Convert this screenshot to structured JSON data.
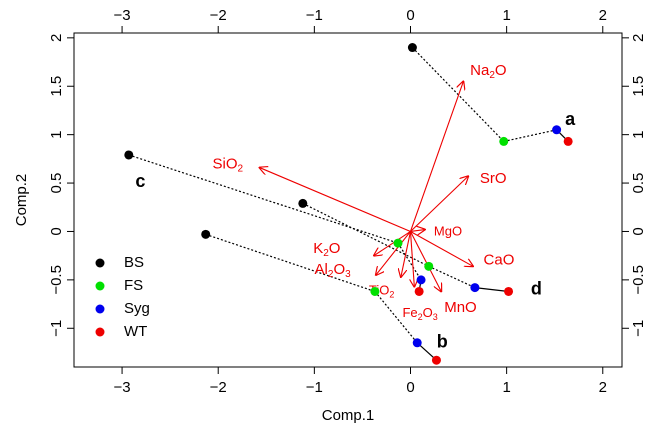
{
  "chart_data": {
    "type": "scatter",
    "title": "",
    "xlabel": "Comp.1",
    "ylabel": "Comp.2",
    "xlim": [
      -3.5,
      2.2
    ],
    "ylim": [
      -1.4,
      2.05
    ],
    "x_ticks": [
      -3,
      -2,
      -1,
      0,
      1,
      2
    ],
    "y_ticks": [
      -1.0,
      -0.5,
      0.0,
      0.5,
      1.0,
      1.5,
      2.0
    ],
    "secondary_x_ticks": [
      -3,
      -2,
      -1,
      0,
      1,
      2
    ],
    "secondary_y_ticks": [
      -1.0,
      -0.5,
      0.0,
      0.5,
      1.0,
      1.5,
      2.0
    ],
    "grid": false,
    "legend_position": "bottom-left",
    "series": [
      {
        "name": "BS",
        "color": "#000000",
        "points": [
          {
            "label": "a",
            "x": 0.02,
            "y": 1.9
          },
          {
            "label": "c",
            "x": -2.93,
            "y": 0.79
          },
          {
            "label": "d",
            "x": -1.12,
            "y": 0.29
          },
          {
            "label": "b",
            "x": -2.13,
            "y": -0.03
          }
        ]
      },
      {
        "name": "FS",
        "color": "#00e000",
        "points": [
          {
            "label": "a",
            "x": 0.97,
            "y": 0.93
          },
          {
            "label": "c",
            "x": -0.13,
            "y": -0.12
          },
          {
            "label": "d",
            "x": 0.19,
            "y": -0.36
          },
          {
            "label": "b",
            "x": -0.37,
            "y": -0.62
          }
        ]
      },
      {
        "name": "Syg",
        "color": "#0000ee",
        "points": [
          {
            "label": "a",
            "x": 1.52,
            "y": 1.05
          },
          {
            "label": "c",
            "x": 0.11,
            "y": -0.5
          },
          {
            "label": "d",
            "x": 0.67,
            "y": -0.58
          },
          {
            "label": "b",
            "x": 0.07,
            "y": -1.15
          }
        ]
      },
      {
        "name": "WT",
        "color": "#ee0000",
        "points": [
          {
            "label": "a",
            "x": 1.64,
            "y": 0.93
          },
          {
            "label": "c",
            "x": 0.09,
            "y": -0.62
          },
          {
            "label": "d",
            "x": 1.02,
            "y": -0.62
          },
          {
            "label": "b",
            "x": 0.27,
            "y": -1.33
          }
        ]
      }
    ],
    "connections": [
      {
        "from": "BS",
        "to": "FS",
        "style": "dotted"
      },
      {
        "from": "FS",
        "to": "Syg",
        "style": "dotted"
      },
      {
        "from": "Syg",
        "to": "WT",
        "style": "solid"
      }
    ],
    "group_labels": [
      {
        "text": "a",
        "x": 1.66,
        "y": 1.15
      },
      {
        "text": "b",
        "x": 0.33,
        "y": -1.15
      },
      {
        "text": "c",
        "x": -2.81,
        "y": 0.51
      },
      {
        "text": "d",
        "x": 1.31,
        "y": -0.6
      }
    ],
    "loading_vectors": {
      "color": "#ee0000",
      "origin": {
        "x": 0,
        "y": 0
      },
      "items": [
        {
          "name": "Na2O",
          "base": "Na",
          "sub": "2",
          "suffix": "O",
          "x": 0.55,
          "y": 1.55,
          "label_x": 0.81,
          "label_y": 1.66,
          "size": "large"
        },
        {
          "name": "SiO2",
          "base": "SiO",
          "sub": "2",
          "suffix": "",
          "x": -1.57,
          "y": 0.66,
          "label_x": -1.9,
          "label_y": 0.69,
          "size": "large"
        },
        {
          "name": "SrO",
          "base": "SrO",
          "sub": "",
          "suffix": "",
          "x": 0.6,
          "y": 0.57,
          "label_x": 0.86,
          "label_y": 0.54,
          "size": "large"
        },
        {
          "name": "MgO",
          "base": "MgO",
          "sub": "",
          "suffix": "",
          "x": 0.15,
          "y": 0.02,
          "label_x": 0.39,
          "label_y": -0.01,
          "size": "small"
        },
        {
          "name": "CaO",
          "base": "CaO",
          "sub": "",
          "suffix": "",
          "x": 0.65,
          "y": -0.36,
          "label_x": 0.92,
          "label_y": -0.3,
          "size": "large"
        },
        {
          "name": "K2O",
          "base": "K",
          "sub": "2",
          "suffix": "O",
          "x": -0.38,
          "y": -0.25,
          "label_x": -0.87,
          "label_y": -0.18,
          "size": "large"
        },
        {
          "name": "Al2O3",
          "base": "Al",
          "sub": "2",
          "suffix": "O",
          "sub2": "3",
          "x": -0.36,
          "y": -0.45,
          "label_x": -0.81,
          "label_y": -0.4,
          "size": "large"
        },
        {
          "name": "TiO2",
          "base": "TiO",
          "sub": "2",
          "suffix": "",
          "x": -0.1,
          "y": -0.47,
          "label_x": -0.3,
          "label_y": -0.62,
          "size": "small"
        },
        {
          "name": "Fe2O3",
          "base": "Fe",
          "sub": "2",
          "suffix": "O",
          "sub2": "3",
          "x": 0.04,
          "y": -0.57,
          "label_x": 0.1,
          "label_y": -0.85,
          "size": "small"
        },
        {
          "name": "MnO",
          "base": "MnO",
          "sub": "",
          "suffix": "",
          "x": 0.32,
          "y": -0.62,
          "label_x": 0.52,
          "label_y": -0.79,
          "size": "large"
        }
      ]
    }
  }
}
